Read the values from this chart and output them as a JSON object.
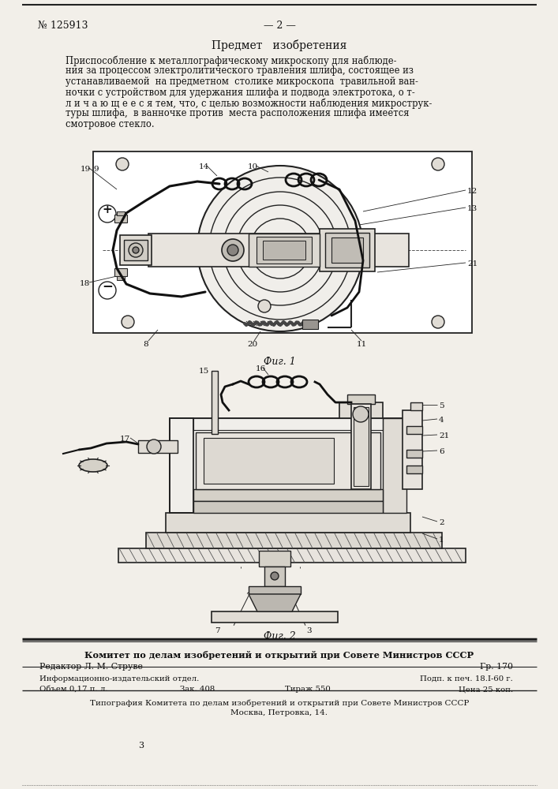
{
  "bg": "#f2efe9",
  "lc": "#222222",
  "patent_no": "№ 125913",
  "page_no": "— 2 —",
  "section_title": "Предмет   изобретения",
  "body_text": [
    "Приспособление к металлографическому микроскопу для наблюде-",
    "ния за процессом электролитического травления шлифа, состоящее из",
    "устанавливаемой  на предметном  столике микроскопа  травильной ван-",
    "ночки с устройством для удержания шлифа и подвода электротока, о т-",
    "л и ч а ю щ е е с я тем, что, с целью возможности наблюдения микрострук-",
    "туры шлифа,  в ванночке против  места расположения шлифа имеется",
    "смотровое стекло."
  ],
  "fig1_caption": "Фиг. 1",
  "fig2_caption": "Фиг. 2",
  "footer_bold": "Комитет по делам изобретений и открытий при Совете Министров СССР",
  "footer_editor": "Редактор Л. М. Струве",
  "footer_gr": "Гр. 170",
  "footer_info": "Информационно-издательский отдел.",
  "footer_podp": "Подп. к печ. 18.I-60 г.",
  "footer_obem": "Объем 0,17 п. л.",
  "footer_zak": "Зак. 408",
  "footer_tirazh": "Тираж 550",
  "footer_cena": "Цена 25 коп.",
  "footer_tipografia": "Типография Комитета по делам изобретений и открытий при Совете Министров СССР",
  "footer_moscow": "Москва, Петровка, 14."
}
